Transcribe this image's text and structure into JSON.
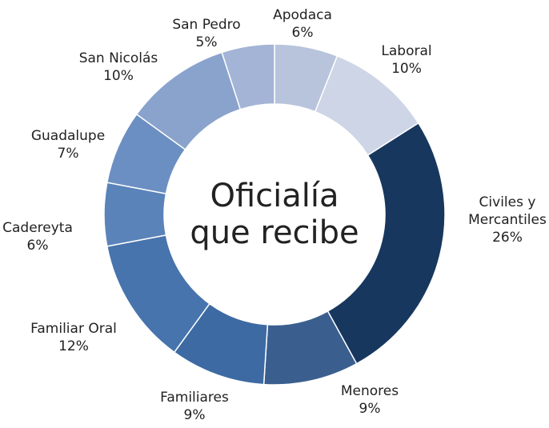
{
  "chart_data": {
    "type": "pie",
    "title": "Oficialía que recibe",
    "categories": [
      "Apodaca",
      "Laboral",
      "Civiles y Mercantiles",
      "Menores",
      "Familiares",
      "Familiar Oral",
      "Cadereyta",
      "Guadalupe",
      "San Nicolás",
      "San Pedro"
    ],
    "values": [
      6,
      10,
      26,
      9,
      9,
      12,
      6,
      7,
      10,
      5
    ],
    "value_labels": [
      "6%",
      "10%",
      "26%",
      "9%",
      "9%",
      "12%",
      "6%",
      "7%",
      "10%",
      "5%"
    ],
    "colors": [
      "#b8c4dc",
      "#cdd5e6",
      "#17375e",
      "#3a5f8f",
      "#3d6aa3",
      "#4774ad",
      "#5a83b9",
      "#6b8fc2",
      "#8aa3cc",
      "#a3b4d6"
    ]
  }
}
